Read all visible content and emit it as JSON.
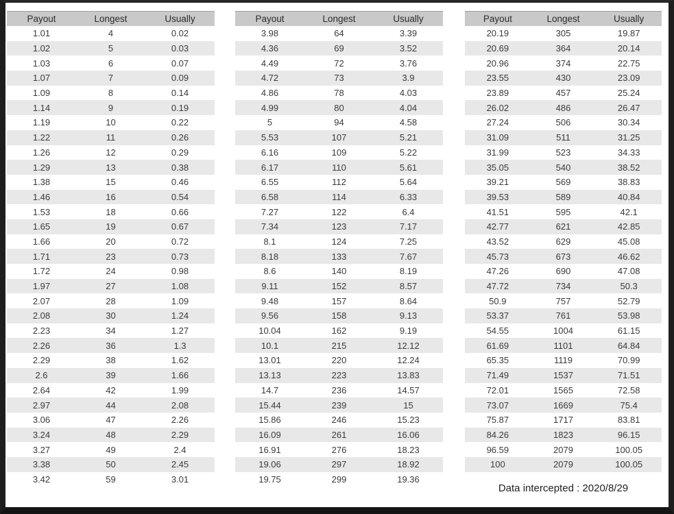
{
  "columns": [
    "Payout",
    "Longest",
    "Usually"
  ],
  "tables": [
    {
      "name": "payout-table-1",
      "rows": [
        [
          "1.01",
          "4",
          "0.02"
        ],
        [
          "1.02",
          "5",
          "0.03"
        ],
        [
          "1.03",
          "6",
          "0.07"
        ],
        [
          "1.07",
          "7",
          "0.09"
        ],
        [
          "1.09",
          "8",
          "0.14"
        ],
        [
          "1.14",
          "9",
          "0.19"
        ],
        [
          "1.19",
          "10",
          "0.22"
        ],
        [
          "1.22",
          "11",
          "0.26"
        ],
        [
          "1.26",
          "12",
          "0.29"
        ],
        [
          "1.29",
          "13",
          "0.38"
        ],
        [
          "1.38",
          "15",
          "0.46"
        ],
        [
          "1.46",
          "16",
          "0.54"
        ],
        [
          "1.53",
          "18",
          "0.66"
        ],
        [
          "1.65",
          "19",
          "0.67"
        ],
        [
          "1.66",
          "20",
          "0.72"
        ],
        [
          "1.71",
          "23",
          "0.73"
        ],
        [
          "1.72",
          "24",
          "0.98"
        ],
        [
          "1.97",
          "27",
          "1.08"
        ],
        [
          "2.07",
          "28",
          "1.09"
        ],
        [
          "2.08",
          "30",
          "1.24"
        ],
        [
          "2.23",
          "34",
          "1.27"
        ],
        [
          "2.26",
          "36",
          "1.3"
        ],
        [
          "2.29",
          "38",
          "1.62"
        ],
        [
          "2.6",
          "39",
          "1.66"
        ],
        [
          "2.64",
          "42",
          "1.99"
        ],
        [
          "2.97",
          "44",
          "2.08"
        ],
        [
          "3.06",
          "47",
          "2.26"
        ],
        [
          "3.24",
          "48",
          "2.29"
        ],
        [
          "3.27",
          "49",
          "2.4"
        ],
        [
          "3.38",
          "50",
          "2.45"
        ],
        [
          "3.42",
          "59",
          "3.01"
        ]
      ]
    },
    {
      "name": "payout-table-2",
      "rows": [
        [
          "3.98",
          "64",
          "3.39"
        ],
        [
          "4.36",
          "69",
          "3.52"
        ],
        [
          "4.49",
          "72",
          "3.76"
        ],
        [
          "4.72",
          "73",
          "3.9"
        ],
        [
          "4.86",
          "78",
          "4.03"
        ],
        [
          "4.99",
          "80",
          "4.04"
        ],
        [
          "5",
          "94",
          "4.58"
        ],
        [
          "5.53",
          "107",
          "5.21"
        ],
        [
          "6.16",
          "109",
          "5.22"
        ],
        [
          "6.17",
          "110",
          "5.61"
        ],
        [
          "6.55",
          "112",
          "5.64"
        ],
        [
          "6.58",
          "114",
          "6.33"
        ],
        [
          "7.27",
          "122",
          "6.4"
        ],
        [
          "7.34",
          "123",
          "7.17"
        ],
        [
          "8.1",
          "124",
          "7.25"
        ],
        [
          "8.18",
          "133",
          "7.67"
        ],
        [
          "8.6",
          "140",
          "8.19"
        ],
        [
          "9.11",
          "152",
          "8.57"
        ],
        [
          "9.48",
          "157",
          "8.64"
        ],
        [
          "9.56",
          "158",
          "9.13"
        ],
        [
          "10.04",
          "162",
          "9.19"
        ],
        [
          "10.1",
          "215",
          "12.12"
        ],
        [
          "13.01",
          "220",
          "12.24"
        ],
        [
          "13.13",
          "223",
          "13.83"
        ],
        [
          "14.7",
          "236",
          "14.57"
        ],
        [
          "15.44",
          "239",
          "15"
        ],
        [
          "15.86",
          "246",
          "15.23"
        ],
        [
          "16.09",
          "261",
          "16.06"
        ],
        [
          "16.91",
          "276",
          "18.23"
        ],
        [
          "19.06",
          "297",
          "18.92"
        ],
        [
          "19.75",
          "299",
          "19.36"
        ]
      ]
    },
    {
      "name": "payout-table-3",
      "rows": [
        [
          "20.19",
          "305",
          "19.87"
        ],
        [
          "20.69",
          "364",
          "20.14"
        ],
        [
          "20.96",
          "374",
          "22.75"
        ],
        [
          "23.55",
          "430",
          "23.09"
        ],
        [
          "23.89",
          "457",
          "25.24"
        ],
        [
          "26.02",
          "486",
          "26.47"
        ],
        [
          "27.24",
          "506",
          "30.34"
        ],
        [
          "31.09",
          "511",
          "31.25"
        ],
        [
          "31.99",
          "523",
          "34.33"
        ],
        [
          "35.05",
          "540",
          "38.52"
        ],
        [
          "39.21",
          "569",
          "38.83"
        ],
        [
          "39.53",
          "589",
          "40.84"
        ],
        [
          "41.51",
          "595",
          "42.1"
        ],
        [
          "42.77",
          "621",
          "42.85"
        ],
        [
          "43.52",
          "629",
          "45.08"
        ],
        [
          "45.73",
          "673",
          "46.62"
        ],
        [
          "47.26",
          "690",
          "47.08"
        ],
        [
          "47.72",
          "734",
          "50.3"
        ],
        [
          "50.9",
          "757",
          "52.79"
        ],
        [
          "53.37",
          "761",
          "53.98"
        ],
        [
          "54.55",
          "1004",
          "61.15"
        ],
        [
          "61.69",
          "1101",
          "64.84"
        ],
        [
          "65.35",
          "1119",
          "70.99"
        ],
        [
          "71.49",
          "1537",
          "71.51"
        ],
        [
          "72.01",
          "1565",
          "72.58"
        ],
        [
          "73.07",
          "1669",
          "75.4"
        ],
        [
          "75.87",
          "1717",
          "83.81"
        ],
        [
          "84.26",
          "1823",
          "96.15"
        ],
        [
          "96.59",
          "2079",
          "100.05"
        ],
        [
          "100",
          "2079",
          "100.05"
        ]
      ]
    }
  ],
  "footer": {
    "text": "Data intercepted : 2020/8/29"
  }
}
